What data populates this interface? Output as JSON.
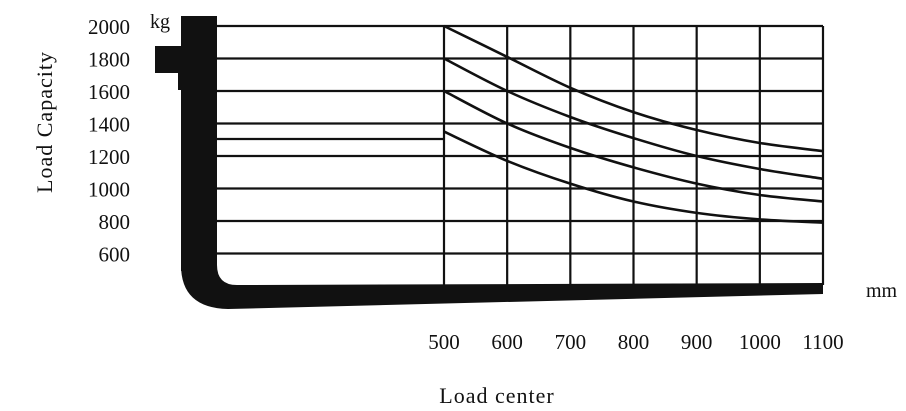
{
  "chart_data": {
    "type": "line",
    "title": "",
    "xlabel": "Load center",
    "ylabel": "Load Capacity",
    "x_unit": "mm",
    "y_unit": "kg",
    "x_ticks": [
      "500",
      "600",
      "700",
      "800",
      "900",
      "1000",
      "1100"
    ],
    "y_ticks": [
      "2000",
      "1800",
      "1600",
      "1400",
      "1200",
      "1000",
      "800",
      "600"
    ],
    "xlim": [
      500,
      1100
    ],
    "ylim": [
      600,
      2000
    ],
    "grid": true,
    "series": [
      {
        "x": [
          500,
          600,
          700,
          800,
          900,
          1000,
          1100
        ],
        "values": [
          2000,
          1810,
          1620,
          1470,
          1360,
          1280,
          1230
        ]
      },
      {
        "x": [
          500,
          600,
          700,
          800,
          900,
          1000,
          1100
        ],
        "values": [
          1800,
          1600,
          1440,
          1310,
          1200,
          1120,
          1060
        ]
      },
      {
        "x": [
          500,
          600,
          700,
          800,
          900,
          1000,
          1100
        ],
        "values": [
          1600,
          1400,
          1250,
          1130,
          1030,
          960,
          920
        ]
      },
      {
        "x": [
          500,
          600,
          700,
          800,
          900,
          1000,
          1100
        ],
        "values": [
          1350,
          1170,
          1030,
          920,
          850,
          810,
          790
        ]
      }
    ]
  }
}
